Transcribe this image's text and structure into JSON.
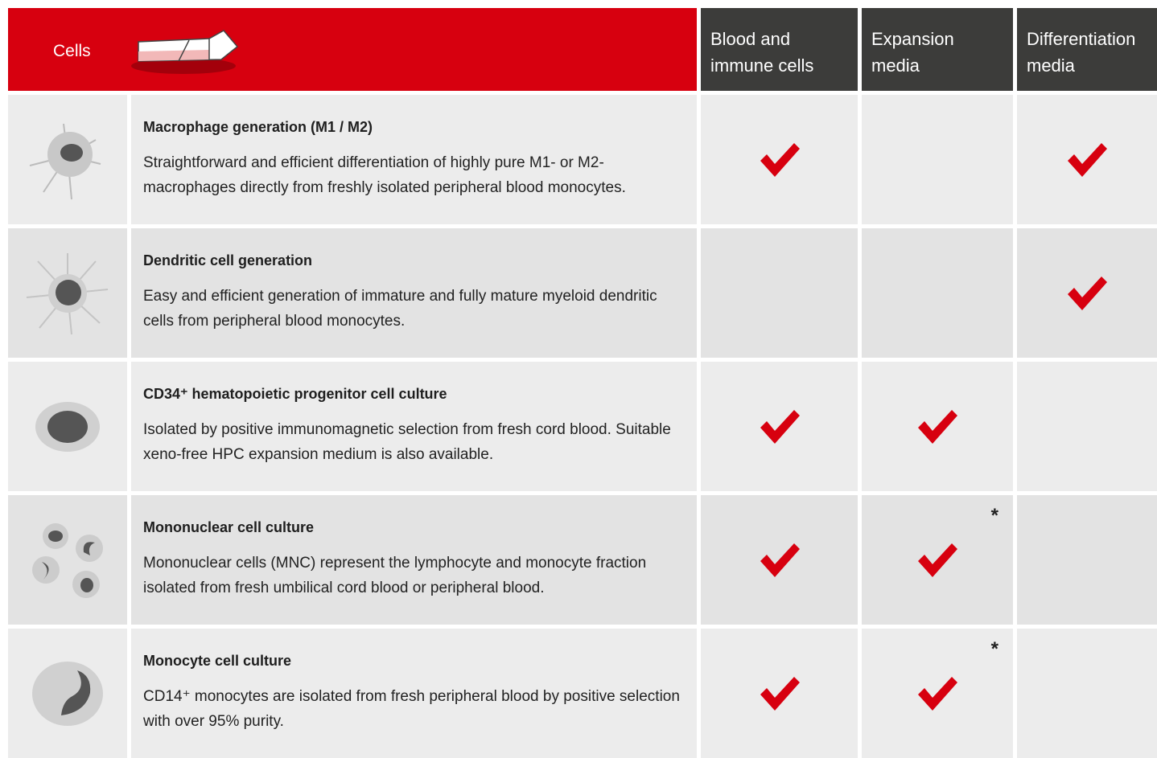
{
  "header": {
    "title": "Cells",
    "columns": [
      "Blood and immune cells",
      "Expansion media",
      "Differentiation media"
    ]
  },
  "rows": [
    {
      "title": "Macrophage generation (M1 / M2)",
      "description": "Straightforward and efficient differentiation of highly pure M1- or M2-macrophages directly from freshly isolated peripheral blood monocytes.",
      "cells": [
        {
          "check": true
        },
        {
          "check": false
        },
        {
          "check": true
        }
      ]
    },
    {
      "title": "Dendritic cell generation",
      "description": "Easy and efficient generation of immature and fully mature myeloid dendritic cells from peripheral blood monocytes.",
      "cells": [
        {
          "check": false
        },
        {
          "check": false
        },
        {
          "check": true
        }
      ]
    },
    {
      "title": "CD34⁺ hematopoietic progenitor cell culture",
      "description": "Isolated by positive immunomagnetic selection from fresh cord blood. Suitable xeno-free HPC expansion medium is also available.",
      "cells": [
        {
          "check": true
        },
        {
          "check": true
        },
        {
          "check": false
        }
      ]
    },
    {
      "title": "Mononuclear cell culture",
      "description": "Mononuclear cells (MNC) represent the lymphocyte and monocyte fraction isolated from fresh umbilical cord blood or peripheral blood.",
      "cells": [
        {
          "check": true
        },
        {
          "check": true,
          "note": "*"
        },
        {
          "check": false
        }
      ]
    },
    {
      "title": "Monocyte cell culture",
      "description": "CD14⁺ monocytes are isolated from fresh peripheral blood by positive selection with over 95% purity.",
      "cells": [
        {
          "check": true
        },
        {
          "check": true,
          "note": "*"
        },
        {
          "check": false
        }
      ]
    }
  ]
}
